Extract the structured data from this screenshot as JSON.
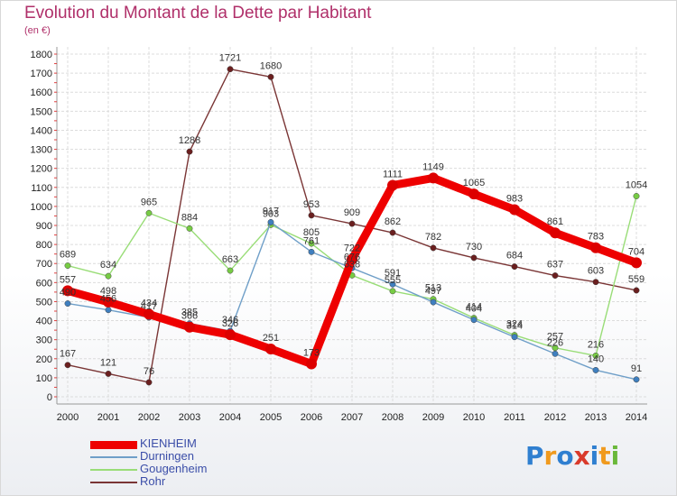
{
  "header": {
    "title": "Evolution du Montant de la Dette par Habitant",
    "unit": "(en €)"
  },
  "logo": {
    "letters": [
      {
        "ch": "P",
        "color": "#2f7fd0"
      },
      {
        "ch": "r",
        "color": "#f09a1e"
      },
      {
        "ch": "o",
        "color": "#2f7fd0"
      },
      {
        "ch": "x",
        "color": "#d93a2b"
      },
      {
        "ch": "i",
        "color": "#2f7fd0"
      },
      {
        "ch": "t",
        "color": "#f09a1e"
      },
      {
        "ch": "i",
        "color": "#6ab83a"
      }
    ]
  },
  "chart_data": {
    "type": "line",
    "title": "Evolution du Montant de la Dette par Habitant",
    "ylabel": "(en €)",
    "x": [
      2000,
      2001,
      2002,
      2003,
      2004,
      2005,
      2006,
      2007,
      2008,
      2009,
      2010,
      2011,
      2012,
      2013,
      2014
    ],
    "ylim": [
      0,
      1800
    ],
    "yticks": [
      0,
      100,
      200,
      300,
      400,
      500,
      600,
      700,
      800,
      900,
      1000,
      1100,
      1200,
      1300,
      1400,
      1500,
      1600,
      1700,
      1800
    ],
    "grid": true,
    "legend_position": "bottom-left",
    "series": [
      {
        "name": "KIENHEIM",
        "color": "#ee0000",
        "dot": "#dd0000",
        "values": [
          557,
          498,
          434,
          366,
          326,
          251,
          173,
          722,
          1111,
          1149,
          1065,
          983,
          861,
          783,
          704
        ],
        "labels": [
          "557",
          "498",
          "434",
          "366",
          "326",
          "251",
          "173",
          "722",
          "1111",
          "1149",
          "1065",
          "983",
          "861",
          "783",
          "704"
        ]
      },
      {
        "name": "Durningen",
        "color": "#6f9fc8",
        "dot": "#3f7fbf",
        "values": [
          490,
          456,
          417,
          385,
          346,
          917,
          761,
          676,
          591,
          497,
          404,
          314,
          226,
          140,
          91
        ],
        "labels": [
          "490",
          "456",
          "417",
          "385",
          "346",
          "917",
          "761",
          "676",
          "591",
          "497",
          "404",
          "314",
          "226",
          "140",
          "91"
        ]
      },
      {
        "name": "Gougenheim",
        "color": "#99dd77",
        "dot": "#77cc44",
        "values": [
          689,
          634,
          965,
          884,
          663,
          903,
          805,
          638,
          555,
          513,
          414,
          324,
          257,
          216,
          1054
        ],
        "labels": [
          "689",
          "634",
          "965",
          "884",
          "663",
          "903",
          "805",
          "638",
          "555",
          "513",
          "414",
          "324",
          "257",
          "216",
          "1054"
        ]
      },
      {
        "name": "Rohr",
        "color": "#7a3535",
        "dot": "#6b1f1f",
        "values": [
          167,
          121,
          76,
          1288,
          1721,
          1680,
          953,
          909,
          862,
          782,
          730,
          684,
          637,
          603,
          559
        ],
        "labels": [
          "167",
          "121",
          "76",
          "1288",
          "1721",
          "1680",
          "953",
          "909",
          "862",
          "782",
          "730",
          "684",
          "637",
          "603",
          "559"
        ]
      }
    ]
  }
}
